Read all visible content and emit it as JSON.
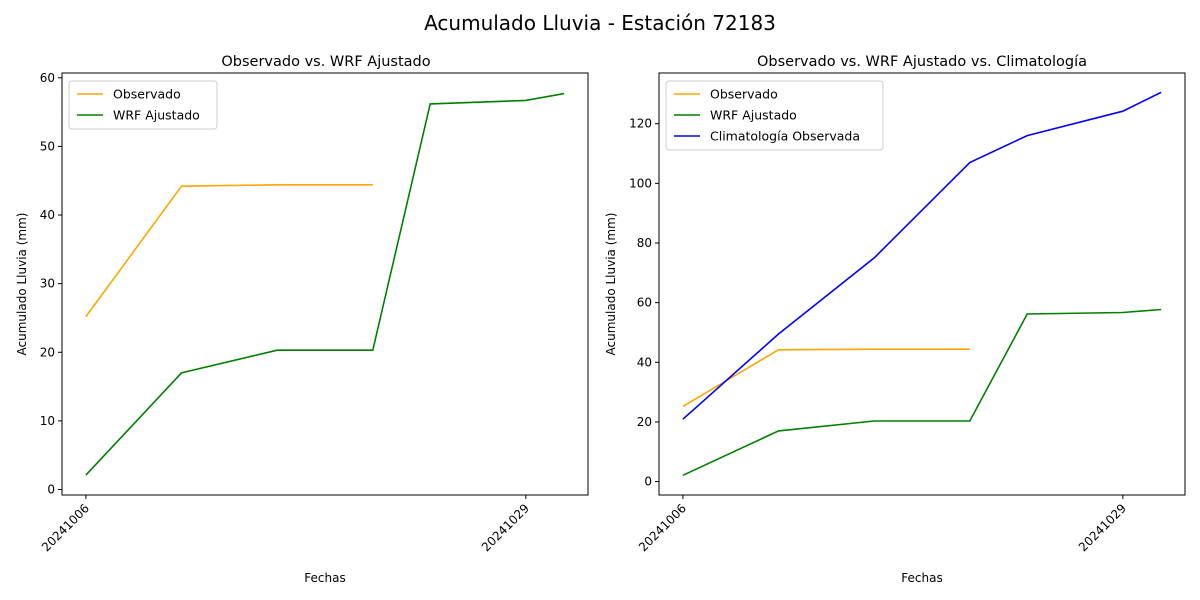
{
  "suptitle": "Acumulado Lluvia - Estación 72183",
  "colors": {
    "observado": "#ffa500",
    "wrf": "#008000",
    "climatologia": "#0000ff"
  },
  "chart_data": [
    {
      "type": "line",
      "title": "Observado vs. WRF Ajustado",
      "xlabel": "Fechas",
      "ylabel": "Acumulado Lluvia (mm)",
      "x": [
        "20241006",
        "20241011",
        "20241016",
        "20241021",
        "20241024",
        "20241029",
        "20241031"
      ],
      "xticks": [
        "20241006",
        "20241029"
      ],
      "ylim": [
        -0.8,
        60.7
      ],
      "yticks": [
        0,
        10,
        20,
        30,
        40,
        50,
        60
      ],
      "legend_position": "upper-left",
      "series": [
        {
          "name": "Observado",
          "color_key": "observado",
          "values": [
            25.2,
            44.2,
            44.4,
            44.4,
            null,
            null,
            null
          ]
        },
        {
          "name": "WRF Ajustado",
          "color_key": "wrf",
          "values": [
            2.1,
            17.0,
            20.3,
            20.3,
            56.2,
            56.7,
            57.7
          ]
        }
      ]
    },
    {
      "type": "line",
      "title": "Observado vs. WRF Ajustado vs. Climatología",
      "xlabel": "Fechas",
      "ylabel": "Acumulado Lluvia (mm)",
      "x": [
        "20241006",
        "20241011",
        "20241016",
        "20241021",
        "20241024",
        "20241029",
        "20241031"
      ],
      "xticks": [
        "20241006",
        "20241029"
      ],
      "ylim": [
        -4.5,
        137.0
      ],
      "yticks": [
        0,
        20,
        40,
        60,
        80,
        100,
        120
      ],
      "legend_position": "upper-left",
      "series": [
        {
          "name": "Observado",
          "color_key": "observado",
          "values": [
            25.2,
            44.2,
            44.4,
            44.4,
            null,
            null,
            null
          ]
        },
        {
          "name": "WRF Ajustado",
          "color_key": "wrf",
          "values": [
            2.1,
            17.0,
            20.3,
            20.3,
            56.2,
            56.7,
            57.7
          ]
        },
        {
          "name": "Climatología Observada",
          "color_key": "climatologia",
          "values": [
            20.9,
            49.5,
            75.0,
            107.0,
            116.0,
            124.2,
            130.5
          ]
        }
      ]
    }
  ]
}
